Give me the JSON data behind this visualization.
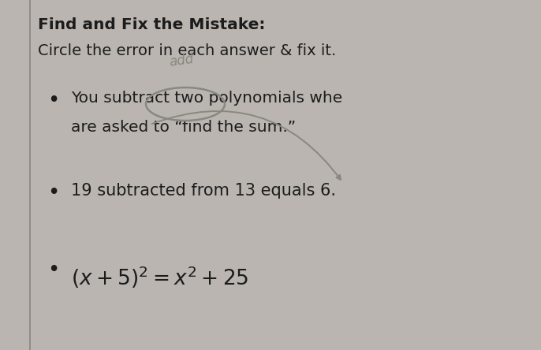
{
  "bg_color": "#bab5b0",
  "panel_color": "#cec9c4",
  "border_color": "#666666",
  "title1": "Find and Fix the Mistake:",
  "title2": "Circle the error in each answer & fix it.",
  "bullet1_line1": "You subtract two polynomials whe",
  "bullet1_line2": "are asked to “find the sum.”",
  "bullet2": "19 subtracted from 13 equals 6.",
  "handwriting": "add",
  "text_color": "#1c1c1c",
  "hand_color": "#888880",
  "title_fs": 14.5,
  "body_fs": 14.5,
  "math_fs": 16,
  "figw": 6.86,
  "figh": 4.44,
  "dpi": 100
}
